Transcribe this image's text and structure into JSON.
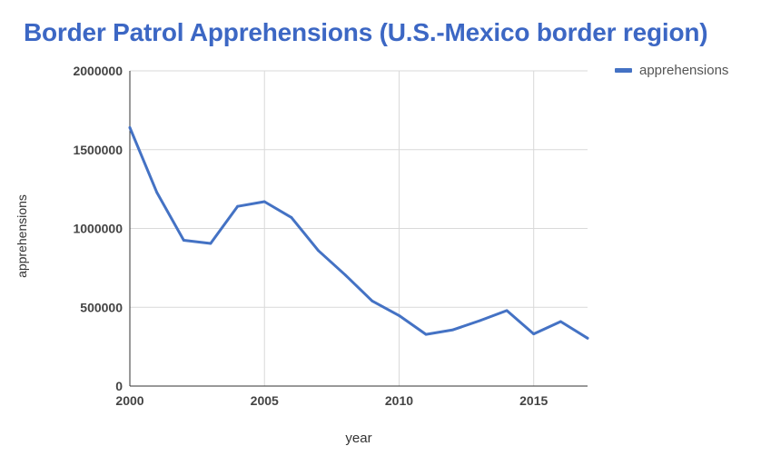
{
  "chart_data": {
    "type": "line",
    "title": "Border Patrol Apprehensions (U.S.-Mexico border region)",
    "xlabel": "year",
    "ylabel": "apprehensions",
    "xlim": [
      2000,
      2017
    ],
    "ylim": [
      0,
      2000000
    ],
    "x_ticks": [
      2000,
      2005,
      2010,
      2015
    ],
    "y_ticks": [
      0,
      500000,
      1000000,
      1500000,
      2000000
    ],
    "x_tick_labels": [
      "2000",
      "2005",
      "2010",
      "2015"
    ],
    "y_tick_labels": [
      "0",
      "500000",
      "1000000",
      "1500000",
      "2000000"
    ],
    "grid": true,
    "legend_position": "top-right",
    "series": [
      {
        "name": "apprehensions",
        "color": "#4472c4",
        "x": [
          2000,
          2001,
          2002,
          2003,
          2004,
          2005,
          2006,
          2007,
          2008,
          2009,
          2010,
          2011,
          2012,
          2013,
          2014,
          2015,
          2016,
          2017
        ],
        "values": [
          1640000,
          1230000,
          925000,
          905000,
          1140000,
          1170000,
          1070000,
          860000,
          705000,
          540000,
          447000,
          328000,
          357000,
          415000,
          479000,
          331000,
          409000,
          304000
        ]
      }
    ]
  },
  "colors": {
    "title": "#3c67c4",
    "grid": "#d9d9d9",
    "axis": "#333333",
    "tick_label": "#444444"
  }
}
